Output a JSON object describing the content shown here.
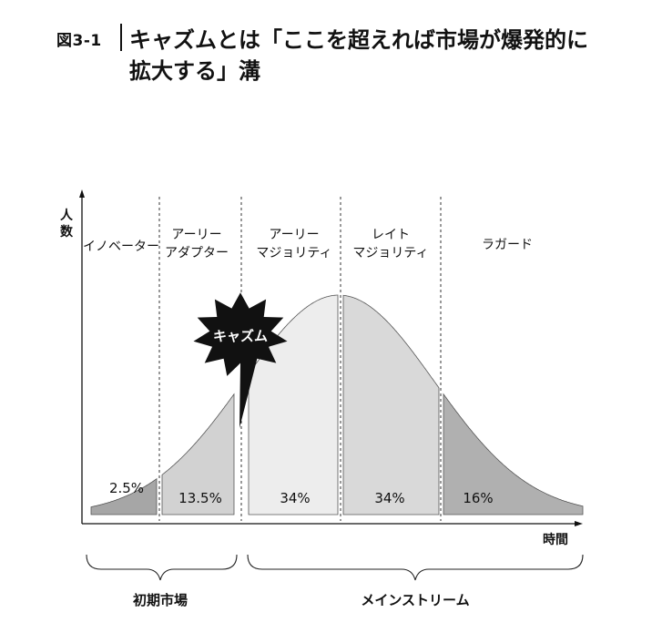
{
  "figure": {
    "label": "図3-1",
    "title_line1": "キャズムとは「ここを超えれば市場が爆発的に",
    "title_line2": "拡大する」溝"
  },
  "axes": {
    "y_label_line1": "人",
    "y_label_line2": "数",
    "x_label": "時間"
  },
  "segments": [
    {
      "name_lines": [
        "イノベーター"
      ],
      "percent": "2.5%",
      "fill": "#a6a6a6"
    },
    {
      "name_lines": [
        "アーリー",
        "アダプター"
      ],
      "percent": "13.5%",
      "fill": "#d2d2d2"
    },
    {
      "name_lines": [
        "アーリー",
        "マジョリティ"
      ],
      "percent": "34%",
      "fill": "#ededed"
    },
    {
      "name_lines": [
        "レイト",
        "マジョリティ"
      ],
      "percent": "34%",
      "fill": "#d9d9d9"
    },
    {
      "name_lines": [
        "ラガード"
      ],
      "percent": "16%",
      "fill": "#b0b0b0"
    }
  ],
  "chasm": {
    "label": "キャズム",
    "fill": "#111111"
  },
  "markets": {
    "early": "初期市場",
    "mainstream": "メインストリーム"
  }
}
